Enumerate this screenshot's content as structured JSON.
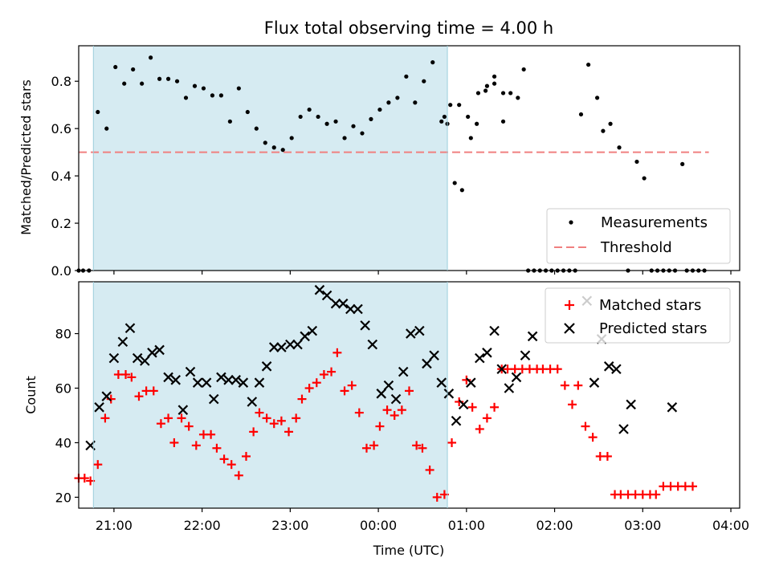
{
  "chart_data": [
    {
      "type": "scatter",
      "title": "Flux total observing time = 4.00 h",
      "xlabel": "",
      "ylabel": "Matched/Predicted stars",
      "xlim": [
        "20:36",
        "04:06"
      ],
      "ylim": [
        0,
        0.95
      ],
      "yticks": [
        "0.0",
        "0.2",
        "0.4",
        "0.6",
        "0.8"
      ],
      "x_tick_marks": [
        "21:00",
        "22:00",
        "23:00",
        "00:00",
        "01:00",
        "02:00",
        "03:00",
        "04:00"
      ],
      "shaded_span": [
        "20:46",
        "00:47"
      ],
      "threshold": {
        "label": "Threshold",
        "y": 0.5,
        "x_range": [
          "20:36",
          "03:45"
        ],
        "color": "#f08080"
      },
      "legend_position": "lower-right",
      "series": [
        {
          "name": "Measurements",
          "color": "#000000",
          "marker": "dot",
          "points": [
            [
              "20:36",
              0.0
            ],
            [
              "20:39",
              0.0
            ],
            [
              "20:43",
              0.0
            ],
            [
              "20:49",
              0.67
            ],
            [
              "20:55",
              0.6
            ],
            [
              "21:01",
              0.86
            ],
            [
              "21:07",
              0.79
            ],
            [
              "21:13",
              0.85
            ],
            [
              "21:19",
              0.79
            ],
            [
              "21:25",
              0.9
            ],
            [
              "21:31",
              0.81
            ],
            [
              "21:37",
              0.81
            ],
            [
              "21:43",
              0.8
            ],
            [
              "21:49",
              0.73
            ],
            [
              "21:55",
              0.78
            ],
            [
              "22:01",
              0.77
            ],
            [
              "22:07",
              0.74
            ],
            [
              "22:13",
              0.74
            ],
            [
              "22:19",
              0.63
            ],
            [
              "22:25",
              0.77
            ],
            [
              "22:31",
              0.67
            ],
            [
              "22:37",
              0.6
            ],
            [
              "22:43",
              0.54
            ],
            [
              "22:49",
              0.52
            ],
            [
              "22:55",
              0.51
            ],
            [
              "23:01",
              0.56
            ],
            [
              "23:07",
              0.65
            ],
            [
              "23:13",
              0.68
            ],
            [
              "23:19",
              0.65
            ],
            [
              "23:25",
              0.62
            ],
            [
              "23:31",
              0.63
            ],
            [
              "23:37",
              0.56
            ],
            [
              "23:43",
              0.61
            ],
            [
              "23:49",
              0.58
            ],
            [
              "23:55",
              0.64
            ],
            [
              "00:01",
              0.68
            ],
            [
              "00:07",
              0.71
            ],
            [
              "00:13",
              0.73
            ],
            [
              "00:19",
              0.82
            ],
            [
              "00:25",
              0.71
            ],
            [
              "00:31",
              0.8
            ],
            [
              "00:37",
              0.88
            ],
            [
              "00:43",
              0.63
            ],
            [
              "00:49",
              0.7
            ],
            [
              "00:55",
              0.7
            ],
            [
              "01:01",
              0.65
            ],
            [
              "01:07",
              0.62
            ],
            [
              "01:13",
              0.76
            ],
            [
              "01:19",
              0.82
            ],
            [
              "01:25",
              0.63
            ],
            [
              "00:45",
              0.65
            ],
            [
              "00:47",
              0.62
            ],
            [
              "00:52",
              0.37
            ],
            [
              "00:57",
              0.34
            ],
            [
              "01:03",
              0.56
            ],
            [
              "01:08",
              0.75
            ],
            [
              "01:14",
              0.78
            ],
            [
              "01:19",
              0.79
            ],
            [
              "01:25",
              0.75
            ],
            [
              "01:30",
              0.75
            ],
            [
              "01:35",
              0.73
            ],
            [
              "01:39",
              0.85
            ],
            [
              "01:42",
              0.0
            ],
            [
              "01:46",
              0.0
            ],
            [
              "01:50",
              0.0
            ],
            [
              "01:54",
              0.0
            ],
            [
              "01:58",
              0.0
            ],
            [
              "02:02",
              0.0
            ],
            [
              "02:06",
              0.0
            ],
            [
              "02:10",
              0.0
            ],
            [
              "02:14",
              0.0
            ],
            [
              "02:18",
              0.66
            ],
            [
              "02:23",
              0.87
            ],
            [
              "02:29",
              0.73
            ],
            [
              "02:33",
              0.59
            ],
            [
              "02:38",
              0.62
            ],
            [
              "02:44",
              0.52
            ],
            [
              "02:50",
              0.0
            ],
            [
              "02:56",
              0.46
            ],
            [
              "03:01",
              0.39
            ],
            [
              "03:06",
              0.0
            ],
            [
              "03:10",
              0.0
            ],
            [
              "03:14",
              0.0
            ],
            [
              "03:18",
              0.0
            ],
            [
              "03:22",
              0.0
            ],
            [
              "03:27",
              0.45
            ],
            [
              "03:30",
              0.0
            ],
            [
              "03:34",
              0.0
            ],
            [
              "03:38",
              0.0
            ],
            [
              "03:42",
              0.0
            ]
          ]
        }
      ]
    },
    {
      "type": "scatter",
      "title": "",
      "xlabel": "Time (UTC)",
      "ylabel": "Count",
      "xlim": [
        "20:36",
        "04:06"
      ],
      "ylim": [
        16,
        99
      ],
      "yticks": [
        "20",
        "40",
        "60",
        "80"
      ],
      "xticks": [
        "21:00",
        "22:00",
        "23:00",
        "00:00",
        "01:00",
        "02:00",
        "03:00",
        "04:00"
      ],
      "shaded_span": [
        "20:46",
        "00:47"
      ],
      "legend_position": "upper-right",
      "series": [
        {
          "name": "Matched stars",
          "color": "#ff0000",
          "marker": "plus",
          "points": [
            [
              "20:36",
              27
            ],
            [
              "20:40",
              27
            ],
            [
              "20:44",
              26
            ],
            [
              "20:49",
              32
            ],
            [
              "20:54",
              49
            ],
            [
              "20:58",
              56
            ],
            [
              "21:03",
              65
            ],
            [
              "21:08",
              65
            ],
            [
              "21:12",
              64
            ],
            [
              "21:17",
              57
            ],
            [
              "21:22",
              59
            ],
            [
              "21:27",
              59
            ],
            [
              "21:32",
              47
            ],
            [
              "21:37",
              49
            ],
            [
              "21:41",
              40
            ],
            [
              "21:46",
              49
            ],
            [
              "21:51",
              46
            ],
            [
              "21:56",
              39
            ],
            [
              "22:01",
              43
            ],
            [
              "22:06",
              43
            ],
            [
              "22:10",
              38
            ],
            [
              "22:15",
              34
            ],
            [
              "22:20",
              32
            ],
            [
              "22:25",
              28
            ],
            [
              "22:30",
              35
            ],
            [
              "22:35",
              44
            ],
            [
              "22:39",
              51
            ],
            [
              "22:44",
              49
            ],
            [
              "22:49",
              47
            ],
            [
              "22:54",
              48
            ],
            [
              "22:59",
              44
            ],
            [
              "23:04",
              49
            ],
            [
              "23:08",
              56
            ],
            [
              "23:13",
              60
            ],
            [
              "23:18",
              62
            ],
            [
              "23:23",
              65
            ],
            [
              "23:28",
              66
            ],
            [
              "23:32",
              73
            ],
            [
              "23:37",
              59
            ],
            [
              "23:42",
              61
            ],
            [
              "23:47",
              51
            ],
            [
              "23:52",
              38
            ],
            [
              "23:57",
              39
            ],
            [
              "00:01",
              46
            ],
            [
              "00:06",
              52
            ],
            [
              "00:11",
              50
            ],
            [
              "00:16",
              52
            ],
            [
              "00:21",
              59
            ],
            [
              "00:26",
              39
            ],
            [
              "00:30",
              38
            ],
            [
              "00:35",
              30
            ],
            [
              "00:40",
              20
            ],
            [
              "00:45",
              21
            ],
            [
              "00:50",
              40
            ],
            [
              "00:55",
              55
            ],
            [
              "01:00",
              63
            ],
            [
              "01:04",
              53
            ],
            [
              "01:09",
              45
            ],
            [
              "01:14",
              49
            ],
            [
              "01:19",
              53
            ],
            [
              "01:24",
              67
            ],
            [
              "01:28",
              67
            ],
            [
              "01:33",
              67
            ],
            [
              "01:38",
              67
            ],
            [
              "01:43",
              67
            ],
            [
              "01:48",
              67
            ],
            [
              "01:52",
              67
            ],
            [
              "01:57",
              67
            ],
            [
              "02:02",
              67
            ],
            [
              "02:07",
              61
            ],
            [
              "02:12",
              54
            ],
            [
              "02:16",
              61
            ],
            [
              "02:21",
              46
            ],
            [
              "02:26",
              42
            ],
            [
              "02:31",
              35
            ],
            [
              "02:36",
              35
            ],
            [
              "02:41",
              21
            ],
            [
              "02:45",
              21
            ],
            [
              "02:50",
              21
            ],
            [
              "02:55",
              21
            ],
            [
              "03:00",
              21
            ],
            [
              "03:05",
              21
            ],
            [
              "03:09",
              21
            ],
            [
              "03:14",
              24
            ],
            [
              "03:19",
              24
            ],
            [
              "03:24",
              24
            ],
            [
              "03:29",
              24
            ],
            [
              "03:34",
              24
            ]
          ]
        },
        {
          "name": "Predicted stars",
          "color": "#000000",
          "marker": "x",
          "points": [
            [
              "20:44",
              39
            ],
            [
              "20:50",
              53
            ],
            [
              "20:55",
              57
            ],
            [
              "21:00",
              71
            ],
            [
              "21:06",
              77
            ],
            [
              "21:11",
              82
            ],
            [
              "21:16",
              71
            ],
            [
              "21:21",
              70
            ],
            [
              "21:26",
              73
            ],
            [
              "21:31",
              74
            ],
            [
              "21:37",
              64
            ],
            [
              "21:42",
              63
            ],
            [
              "21:47",
              52
            ],
            [
              "21:52",
              66
            ],
            [
              "21:57",
              62
            ],
            [
              "22:03",
              62
            ],
            [
              "22:08",
              56
            ],
            [
              "22:13",
              64
            ],
            [
              "22:18",
              63
            ],
            [
              "22:23",
              63
            ],
            [
              "22:28",
              62
            ],
            [
              "22:34",
              55
            ],
            [
              "22:39",
              62
            ],
            [
              "22:44",
              68
            ],
            [
              "22:49",
              75
            ],
            [
              "22:54",
              75
            ],
            [
              "23:00",
              76
            ],
            [
              "23:05",
              76
            ],
            [
              "23:10",
              79
            ],
            [
              "23:15",
              81
            ],
            [
              "23:20",
              96
            ],
            [
              "23:25",
              94
            ],
            [
              "23:31",
              91
            ],
            [
              "23:36",
              91
            ],
            [
              "23:41",
              89
            ],
            [
              "23:46",
              89
            ],
            [
              "23:51",
              83
            ],
            [
              "23:56",
              76
            ],
            [
              "00:02",
              58
            ],
            [
              "00:07",
              61
            ],
            [
              "00:12",
              56
            ],
            [
              "00:17",
              66
            ],
            [
              "00:22",
              80
            ],
            [
              "00:28",
              81
            ],
            [
              "00:33",
              69
            ],
            [
              "00:38",
              72
            ],
            [
              "00:43",
              62
            ],
            [
              "00:48",
              58
            ],
            [
              "00:53",
              48
            ],
            [
              "00:58",
              54
            ],
            [
              "01:03",
              62
            ],
            [
              "01:09",
              71
            ],
            [
              "01:14",
              73
            ],
            [
              "01:19",
              81
            ],
            [
              "01:24",
              67
            ],
            [
              "01:29",
              60
            ],
            [
              "01:34",
              64
            ],
            [
              "01:40",
              72
            ],
            [
              "01:45",
              79
            ],
            [
              "02:22",
              92
            ],
            [
              "02:27",
              62
            ],
            [
              "02:32",
              78
            ],
            [
              "02:37",
              68
            ],
            [
              "02:42",
              67
            ],
            [
              "02:47",
              45
            ],
            [
              "02:52",
              54
            ],
            [
              "03:20",
              53
            ]
          ]
        }
      ]
    }
  ]
}
